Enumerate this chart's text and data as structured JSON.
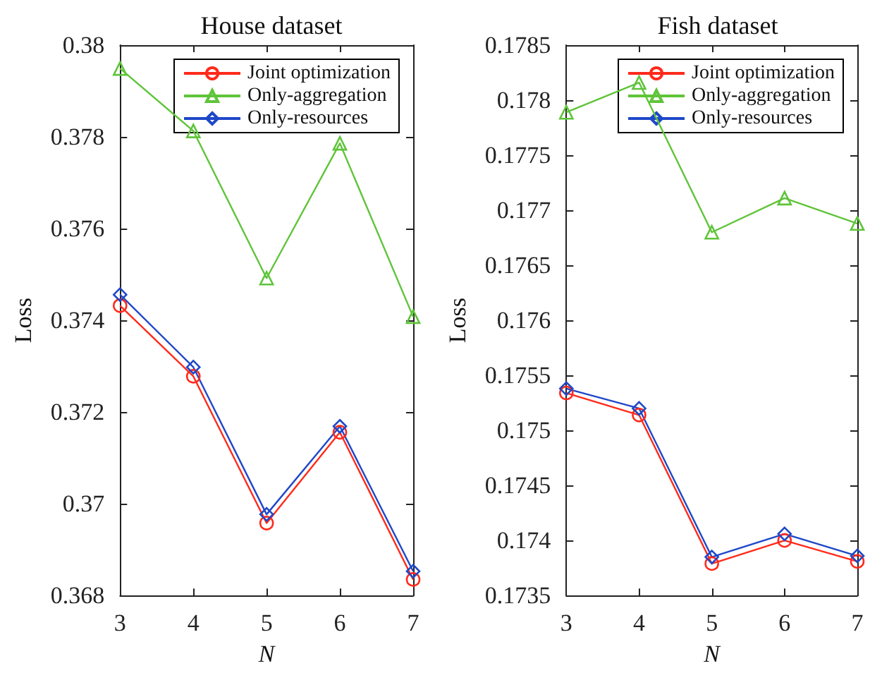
{
  "chart_data": [
    {
      "type": "line",
      "title": "House dataset",
      "xlabel": "N",
      "ylabel": "Loss",
      "x": [
        3,
        4,
        5,
        6,
        7
      ],
      "xlim": [
        3,
        7
      ],
      "xticks": [
        3,
        4,
        5,
        6,
        7
      ],
      "ylim": [
        0.368,
        0.38
      ],
      "yticks": [
        0.368,
        0.37,
        0.372,
        0.374,
        0.376,
        0.378,
        0.38
      ],
      "grid": false,
      "legend": "top right",
      "series": [
        {
          "name": "Joint optimization",
          "color": "#ff2a1a",
          "marker": "circle",
          "values": [
            0.37432,
            0.37278,
            0.36958,
            0.37156,
            0.36835
          ]
        },
        {
          "name": "Only-aggregation",
          "color": "#5fc43a",
          "marker": "triangle",
          "values": [
            0.37949,
            0.37813,
            0.37492,
            0.37786,
            0.37408
          ]
        },
        {
          "name": "Only-resources",
          "color": "#1f48c8",
          "marker": "diamond",
          "values": [
            0.37456,
            0.37298,
            0.36977,
            0.37169,
            0.36853
          ]
        }
      ]
    },
    {
      "type": "line",
      "title": "Fish dataset",
      "xlabel": "N",
      "ylabel": "Loss",
      "x": [
        3,
        4,
        5,
        6,
        7
      ],
      "xlim": [
        3,
        7
      ],
      "xticks": [
        3,
        4,
        5,
        6,
        7
      ],
      "ylim": [
        0.1735,
        0.1785
      ],
      "yticks": [
        0.1735,
        0.174,
        0.1745,
        0.175,
        0.1755,
        0.176,
        0.1765,
        0.177,
        0.1775,
        0.178,
        0.1785
      ],
      "grid": false,
      "legend": "top right",
      "series": [
        {
          "name": "Joint optimization",
          "color": "#ff2a1a",
          "marker": "circle",
          "values": [
            0.17534,
            0.17514,
            0.17379,
            0.174,
            0.17381
          ]
        },
        {
          "name": "Only-aggregation",
          "color": "#5fc43a",
          "marker": "triangle",
          "values": [
            0.17789,
            0.17816,
            0.1768,
            0.17711,
            0.17688
          ]
        },
        {
          "name": "Only-resources",
          "color": "#1f48c8",
          "marker": "diamond",
          "values": [
            0.17538,
            0.1752,
            0.17385,
            0.17406,
            0.17386
          ]
        }
      ]
    }
  ]
}
